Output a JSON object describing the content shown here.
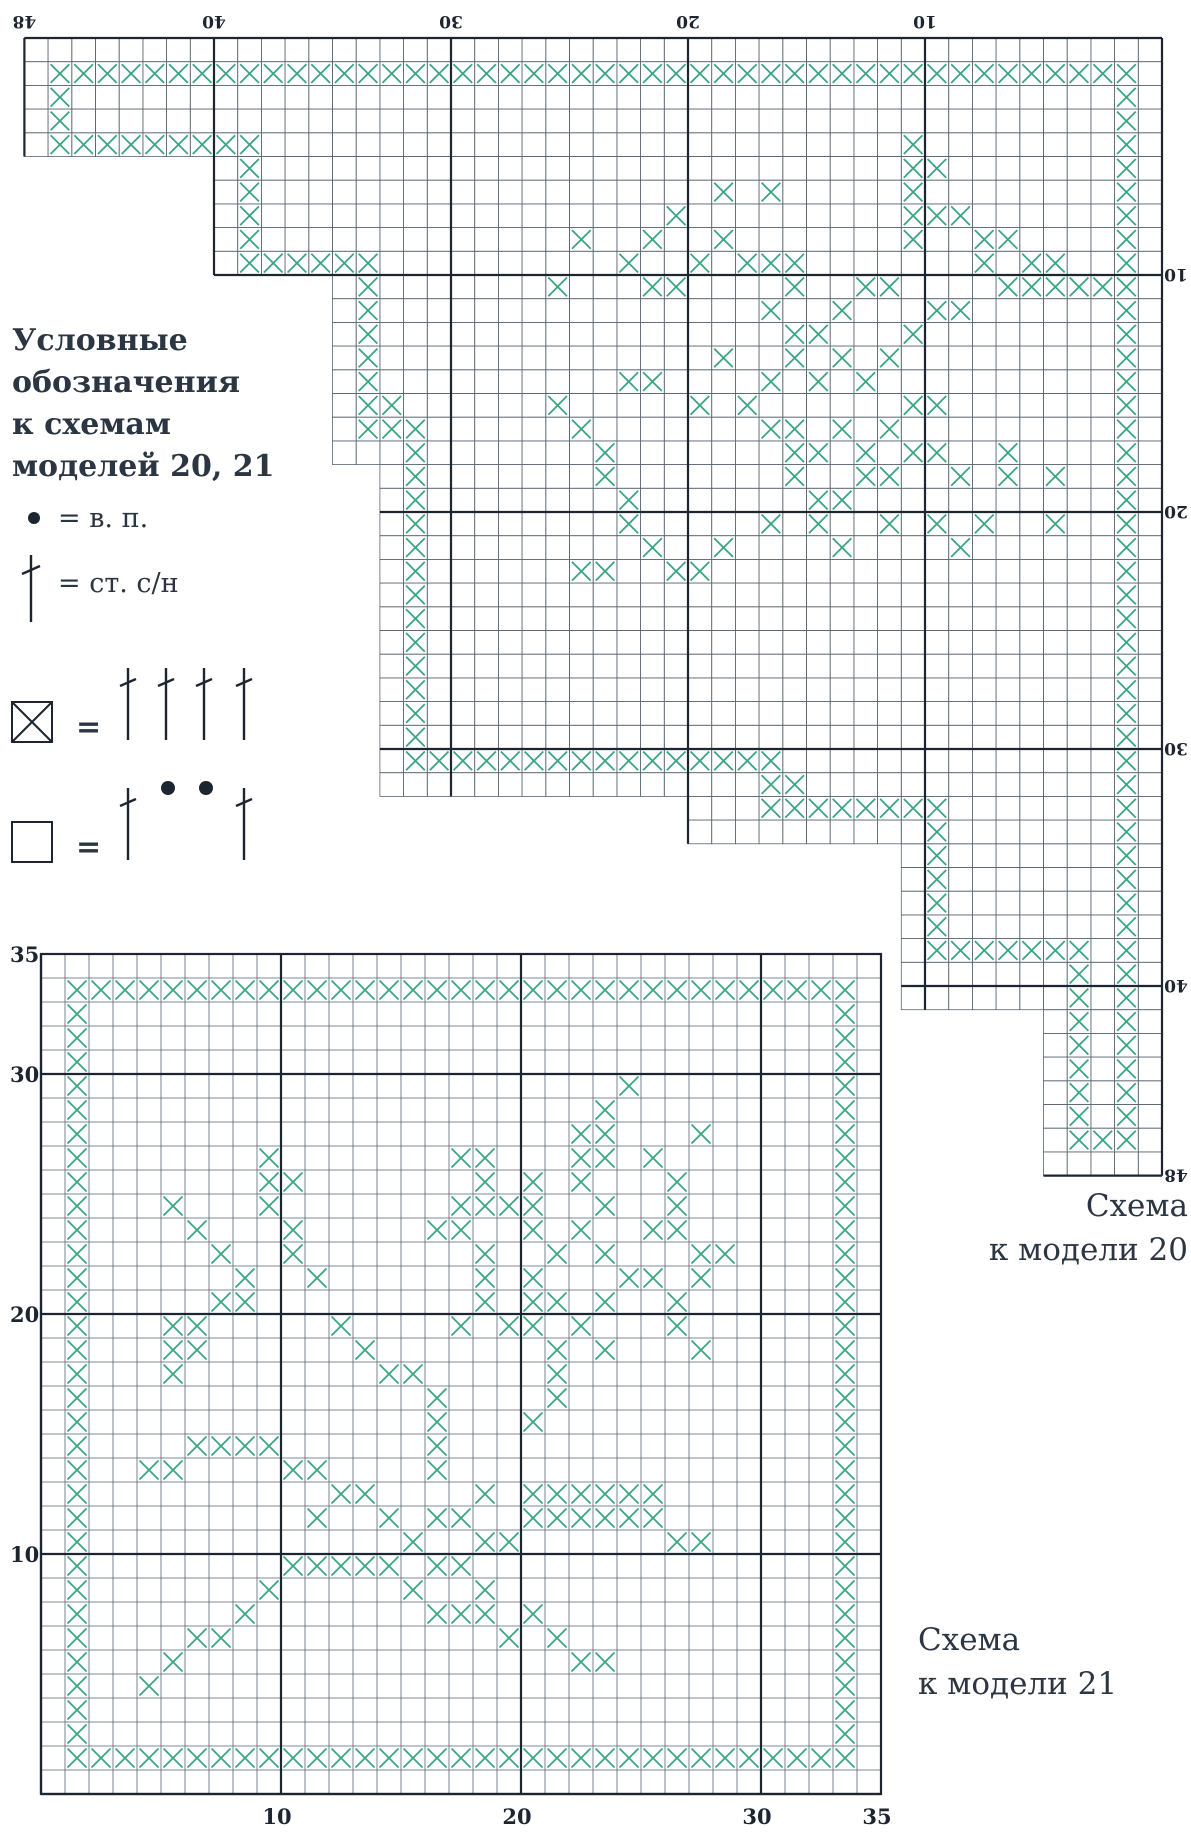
{
  "legend": {
    "title_lines": [
      "Условные",
      "обозначения",
      "к схемам",
      "моделей 20, 21"
    ],
    "chain_stitch_label": "= в. п.",
    "double_crochet_label": "= ст. с/н",
    "filled_cell_equals": "=",
    "open_cell_equals": "="
  },
  "chart_20": {
    "caption_lines": [
      "Схема",
      "к модели 20"
    ],
    "top_ticks": [
      "10",
      "20",
      "30",
      "40",
      "48"
    ],
    "right_ticks": [
      "10",
      "20",
      "30",
      "40",
      "48"
    ]
  },
  "chart_21": {
    "caption_lines": [
      "Схема",
      "к модели 21"
    ],
    "bottom_ticks": [
      "10",
      "20",
      "30",
      "35"
    ],
    "left_ticks": [
      "10",
      "20",
      "30",
      "35"
    ]
  },
  "colors": {
    "stitch": "#3aa582",
    "grid": "#5a6570",
    "major": "#1d2630"
  }
}
